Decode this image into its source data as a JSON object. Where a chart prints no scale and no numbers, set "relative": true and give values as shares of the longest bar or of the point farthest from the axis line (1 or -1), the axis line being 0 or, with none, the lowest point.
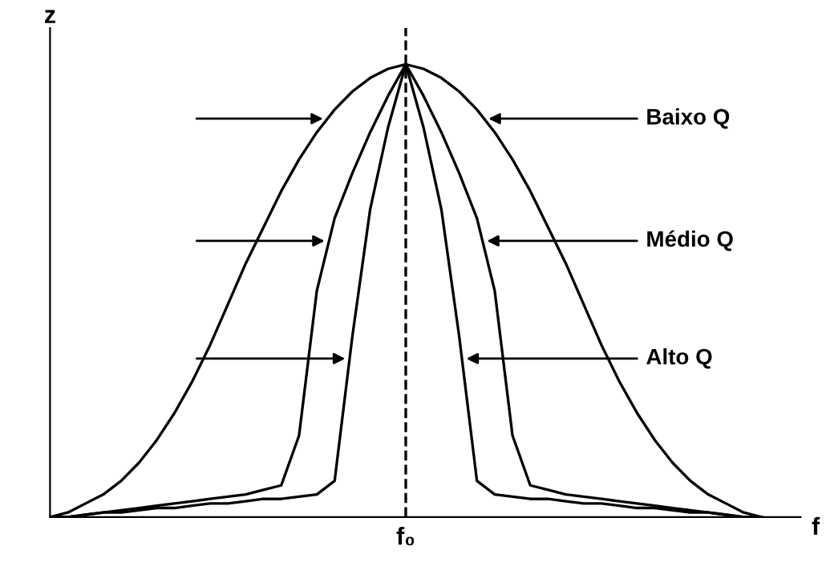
{
  "chart_data": {
    "type": "line",
    "relative": true,
    "xlabel": "f",
    "ylabel": "z",
    "categories": [
      null,
      null,
      null,
      null,
      null,
      null,
      null,
      null,
      null,
      null,
      null,
      null,
      null,
      null,
      null,
      null,
      null,
      null,
      null,
      null,
      null,
      null,
      null,
      null,
      null,
      null,
      null,
      null,
      null,
      null,
      null,
      null,
      null,
      null,
      null,
      null,
      null,
      null,
      null,
      null,
      null
    ],
    "series": [
      {
        "color": "#000000",
        "values": [
          0,
          0.01,
          0.03,
          0.05,
          0.08,
          0.12,
          0.17,
          0.23,
          0.3,
          0.38,
          0.47,
          0.56,
          0.64,
          0.72,
          0.79,
          0.85,
          0.9,
          0.94,
          0.97,
          0.99,
          1,
          0.99,
          0.97,
          0.94,
          0.9,
          0.85,
          0.79,
          0.72,
          0.64,
          0.56,
          0.47,
          0.38,
          0.3,
          0.23,
          0.17,
          0.12,
          0.08,
          0.05,
          0.03,
          0.01,
          0
        ]
      },
      {
        "color": "#000000",
        "values": [
          0,
          0,
          0.005,
          0.01,
          0.015,
          0.02,
          0.025,
          0.03,
          0.035,
          0.04,
          0.045,
          0.05,
          0.06,
          0.07,
          0.18,
          0.5,
          0.66,
          0.76,
          0.85,
          0.93,
          1,
          0.93,
          0.85,
          0.76,
          0.66,
          0.5,
          0.18,
          0.07,
          0.06,
          0.05,
          0.045,
          0.04,
          0.035,
          0.03,
          0.025,
          0.02,
          0.015,
          0.01,
          0.005,
          0,
          0
        ]
      },
      {
        "color": "#000000",
        "values": [
          0,
          0,
          0.005,
          0.01,
          0.01,
          0.015,
          0.02,
          0.02,
          0.025,
          0.03,
          0.03,
          0.035,
          0.04,
          0.04,
          0.045,
          0.05,
          0.08,
          0.4,
          0.68,
          0.86,
          1,
          0.86,
          0.68,
          0.4,
          0.08,
          0.05,
          0.045,
          0.04,
          0.04,
          0.035,
          0.03,
          0.03,
          0.025,
          0.02,
          0.02,
          0.015,
          0.01,
          0.01,
          0.005,
          0,
          0
        ]
      }
    ],
    "annotations": [
      "Baixo Q",
      "Médio Q",
      "Alto Q"
    ],
    "ref_lines": [
      {
        "axis": "x",
        "label": "f₀",
        "color": "#000000",
        "line_style": "dashed"
      }
    ],
    "legend": false,
    "marker": "none",
    "line_style": "solid"
  }
}
